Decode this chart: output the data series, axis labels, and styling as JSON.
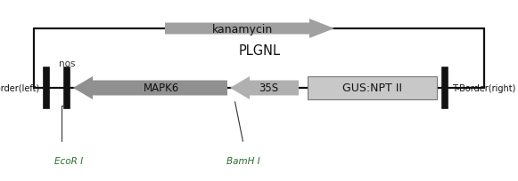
{
  "background_color": "#ffffff",
  "title": "PLGNL",
  "arrow_color_kanamycin": "#a0a0a0",
  "arrow_color_mapk6": "#909090",
  "arrow_color_35s": "#b0b0b0",
  "box_color_gus": "#c8c8c8",
  "line_color": "#111111",
  "kanamycin_label": "kanamycin",
  "mapk6_label": "MAPK6",
  "label_35s": "35S",
  "label_gus": "GUS:NPT II",
  "label_tborder_left": "T-Border(left)",
  "label_tborder_right": "T-Border(right)",
  "label_nos": "nos",
  "label_ecori": "EcoR I",
  "label_bamhi": "BamH I"
}
